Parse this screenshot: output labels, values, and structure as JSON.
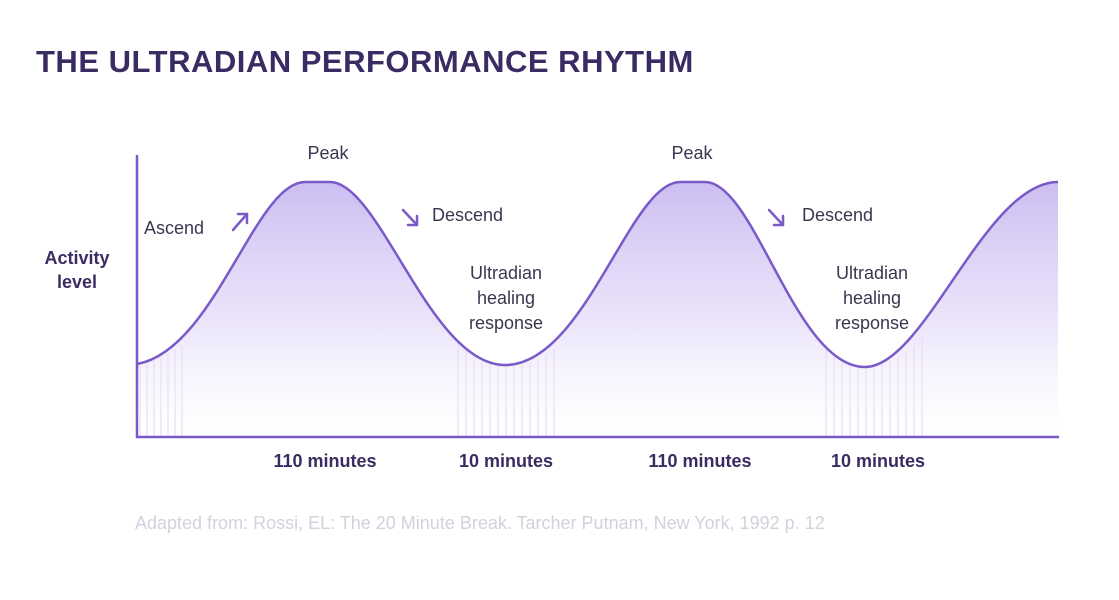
{
  "title": "THE ULTRADIAN PERFORMANCE RHYTHM",
  "y_axis_label_lines": [
    "Activity",
    "level"
  ],
  "annotations": {
    "ascend": "Ascend",
    "peak": "Peak",
    "descend": "Descend",
    "healing_lines": [
      "Ultradian",
      "healing",
      "response"
    ]
  },
  "durations": [
    "110 minutes",
    "10 minutes",
    "110 minutes",
    "10 minutes"
  ],
  "source": "Adapted from: Rossi, EL: The 20 Minute Break. Tarcher Putnam, New York, 1992 p. 12",
  "colors": {
    "title": "#3a2c63",
    "curve": "#7a5ac8",
    "fill_top": "#cbbdf0",
    "axis": "#7a5ac8",
    "source_text": "#d4d0de"
  }
}
